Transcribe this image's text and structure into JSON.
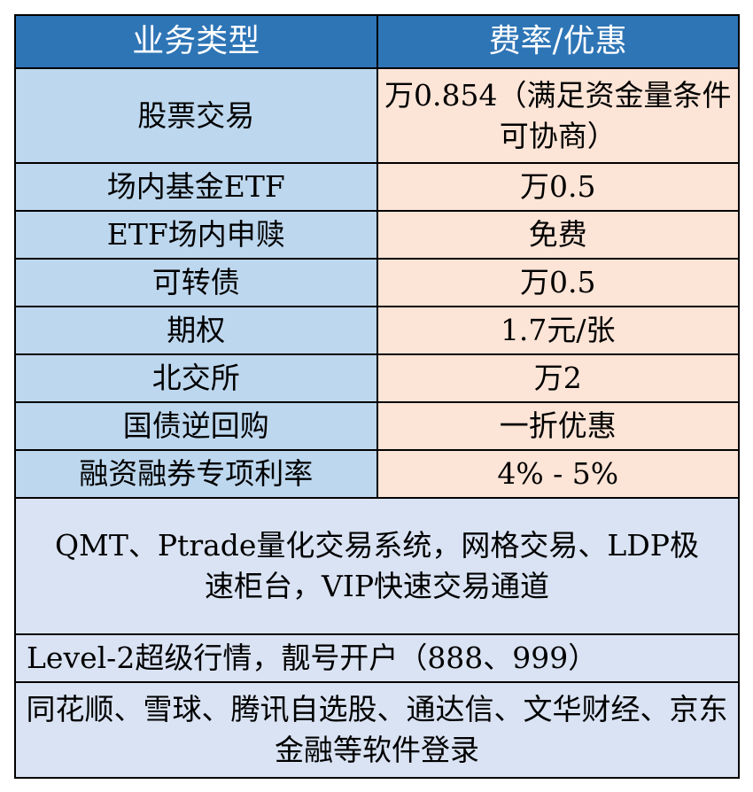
{
  "header": {
    "col1": "业务类型",
    "col2": "费率/优惠"
  },
  "rows": [
    {
      "type": "股票交易",
      "rate": "万0.854（满足资金量条件可协商）"
    },
    {
      "type": "场内基金ETF",
      "rate": "万0.5"
    },
    {
      "type": "ETF场内申赎",
      "rate": "免费"
    },
    {
      "type": "可转债",
      "rate": "万0.5"
    },
    {
      "type": "期权",
      "rate": "1.7元/张"
    },
    {
      "type": "北交所",
      "rate": "万2"
    },
    {
      "type": "国债逆回购",
      "rate": "一折优惠"
    },
    {
      "type": "融资融券专项利率",
      "rate": "4% - 5%"
    }
  ],
  "features": [
    "QMT、Ptrade量化交易系统，网格交易、LDP极速柜台，VIP快速交易通道",
    "Level-2超级行情，靓号开户（888、999）",
    "同花顺、雪球、腾讯自选股、通达信、文华财经、京东金融等软件登录"
  ],
  "colors": {
    "header": "#2E75B6",
    "type_cell": "#BDD7EE",
    "rate_cell": "#FCE4D6",
    "feature_cell": "#DAE3F3"
  }
}
